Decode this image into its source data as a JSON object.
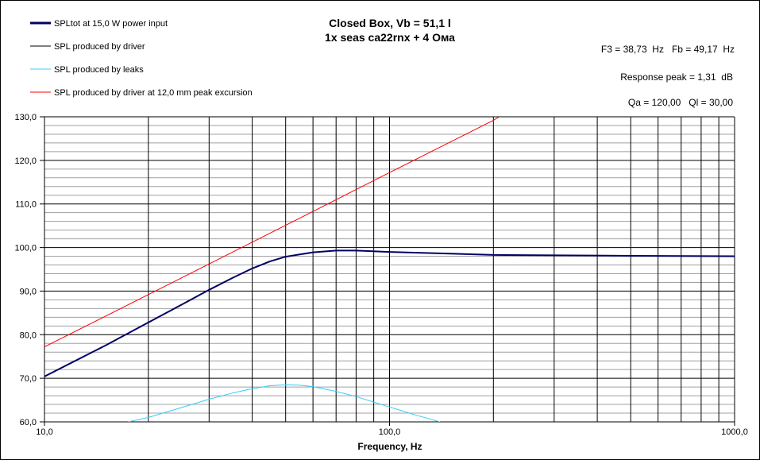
{
  "chart_data": {
    "type": "line",
    "title": "Closed Box, Vb = 51,1 l",
    "subtitle": "1x seas ca22rnx + 4 Ома",
    "annotations": [
      "F3 = 38,73  Hz   Fb = 49,17  Hz",
      "Response peak = 1,31  dB",
      "Qa = 120,00   Ql = 30,00"
    ],
    "xlabel": "Frequency, Hz",
    "ylabel": "",
    "x_scale": "log",
    "xlim": [
      10,
      1000
    ],
    "ylim": [
      60,
      130
    ],
    "x_tick_labels": [
      "10,0",
      "100,0",
      "1000,0"
    ],
    "x_ticks": [
      10,
      100,
      1000
    ],
    "y_ticks": [
      60,
      70,
      80,
      90,
      100,
      110,
      120,
      130
    ],
    "y_tick_labels": [
      "60,0",
      "70,0",
      "80,0",
      "90,0",
      "100,0",
      "110,0",
      "120,0",
      "130,0"
    ],
    "grid": true,
    "legend_position": "top-left",
    "series": [
      {
        "name": "SPLtot at 15,0 W power input",
        "color": "#000066",
        "x": [
          10,
          15,
          20,
          25,
          30,
          35,
          40,
          45,
          50,
          60,
          70,
          80,
          100,
          150,
          200,
          300,
          500,
          1000
        ],
        "y": [
          70.4,
          77.5,
          82.8,
          86.9,
          90.3,
          93.0,
          95.2,
          96.8,
          97.9,
          98.9,
          99.3,
          99.3,
          99.0,
          98.6,
          98.3,
          98.2,
          98.1,
          98.0
        ]
      },
      {
        "name": "SPL produced by driver",
        "color": "#000000",
        "x": [
          10,
          15,
          20,
          25,
          30,
          35,
          40,
          45,
          50,
          60,
          70,
          80,
          100,
          150,
          200,
          300,
          500,
          1000
        ],
        "y": [
          70.4,
          77.5,
          82.8,
          86.9,
          90.3,
          93.0,
          95.2,
          96.8,
          97.9,
          98.9,
          99.3,
          99.3,
          99.0,
          98.6,
          98.3,
          98.2,
          98.1,
          98.0
        ]
      },
      {
        "name": "SPL produced by leaks",
        "color": "#33CCFF",
        "x": [
          17.5,
          20,
          25,
          30,
          35,
          40,
          45,
          50,
          55,
          60,
          70,
          80,
          100,
          120,
          140
        ],
        "y": [
          60.0,
          61.0,
          63.3,
          65.2,
          66.6,
          67.6,
          68.3,
          68.5,
          68.4,
          68.1,
          67.0,
          65.8,
          63.4,
          61.5,
          60.0
        ]
      },
      {
        "name": "SPL produced by driver at 12,0 mm peak excursion",
        "color": "#FF0000",
        "x": [
          10,
          20,
          50,
          100,
          200,
          208
        ],
        "y": [
          77.2,
          89.2,
          105.1,
          117.2,
          129.2,
          130.0
        ]
      }
    ]
  }
}
